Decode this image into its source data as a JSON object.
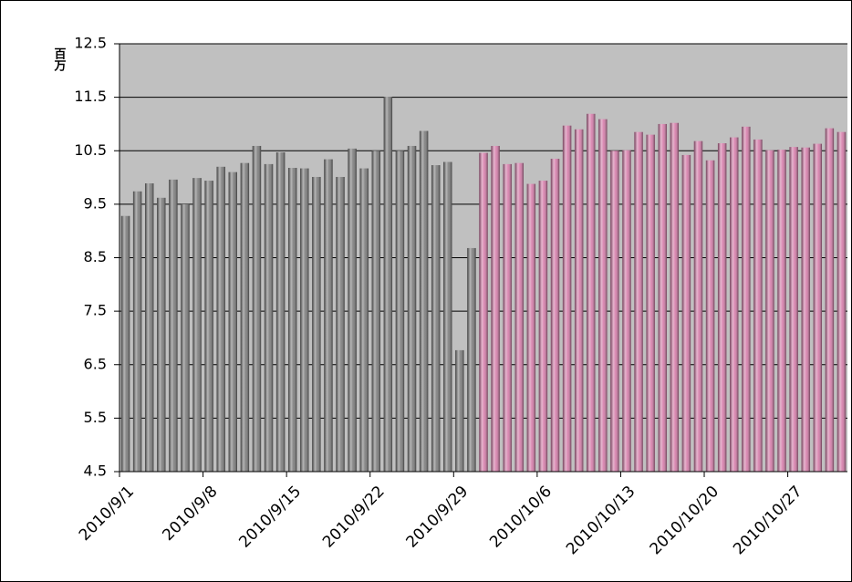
{
  "chart_data": {
    "type": "bar",
    "y_unit_label": "百万",
    "categories": [
      "2010/9/1",
      null,
      null,
      null,
      null,
      null,
      null,
      "2010/9/8",
      null,
      null,
      null,
      null,
      null,
      null,
      "2010/9/15",
      null,
      null,
      null,
      null,
      null,
      null,
      "2010/9/22",
      null,
      null,
      null,
      null,
      null,
      null,
      "2010/9/29",
      null,
      null,
      null,
      null,
      null,
      null,
      "2010/10/6",
      null,
      null,
      null,
      null,
      null,
      null,
      "2010/10/13",
      null,
      null,
      null,
      null,
      null,
      null,
      "2010/10/20",
      null,
      null,
      null,
      null,
      null,
      null,
      "2010/10/27",
      null,
      null,
      null,
      null
    ],
    "series": [
      {
        "color": "#7a7a7a",
        "values": [
          9.28,
          9.74,
          9.89,
          9.62,
          9.96,
          9.5,
          9.99,
          9.94,
          10.2,
          10.1,
          10.27,
          10.59,
          10.25,
          10.47,
          10.18,
          10.17,
          10.01,
          10.34,
          10.01,
          10.54,
          10.17,
          10.5,
          11.51,
          10.5,
          10.59,
          10.87,
          10.23,
          10.29,
          6.77,
          8.68,
          null,
          null,
          null,
          null,
          null,
          null,
          null,
          null,
          null,
          null,
          null,
          null,
          null,
          null,
          null,
          null,
          null,
          null,
          null,
          null,
          null,
          null,
          null,
          null,
          null,
          null,
          null,
          null,
          null,
          null,
          null
        ]
      },
      {
        "color": "#d47aa8",
        "values": [
          null,
          null,
          null,
          null,
          null,
          null,
          null,
          null,
          null,
          null,
          null,
          null,
          null,
          null,
          null,
          null,
          null,
          null,
          null,
          null,
          null,
          null,
          null,
          null,
          null,
          null,
          null,
          null,
          null,
          null,
          10.46,
          10.59,
          10.25,
          10.27,
          9.88,
          9.94,
          10.35,
          10.97,
          10.9,
          11.19,
          11.09,
          10.5,
          10.51,
          10.85,
          10.8,
          11.0,
          11.02,
          10.42,
          10.68,
          10.32,
          10.64,
          10.75,
          10.95,
          10.71,
          10.51,
          10.52,
          10.57,
          10.56,
          10.63,
          10.92,
          10.85
        ]
      }
    ],
    "ylim": [
      4.5,
      12.5
    ],
    "yticks": [
      4.5,
      5.5,
      6.5,
      7.5,
      8.5,
      9.5,
      10.5,
      11.5,
      12.5
    ],
    "grid": true,
    "background": "#c0c0c0"
  }
}
